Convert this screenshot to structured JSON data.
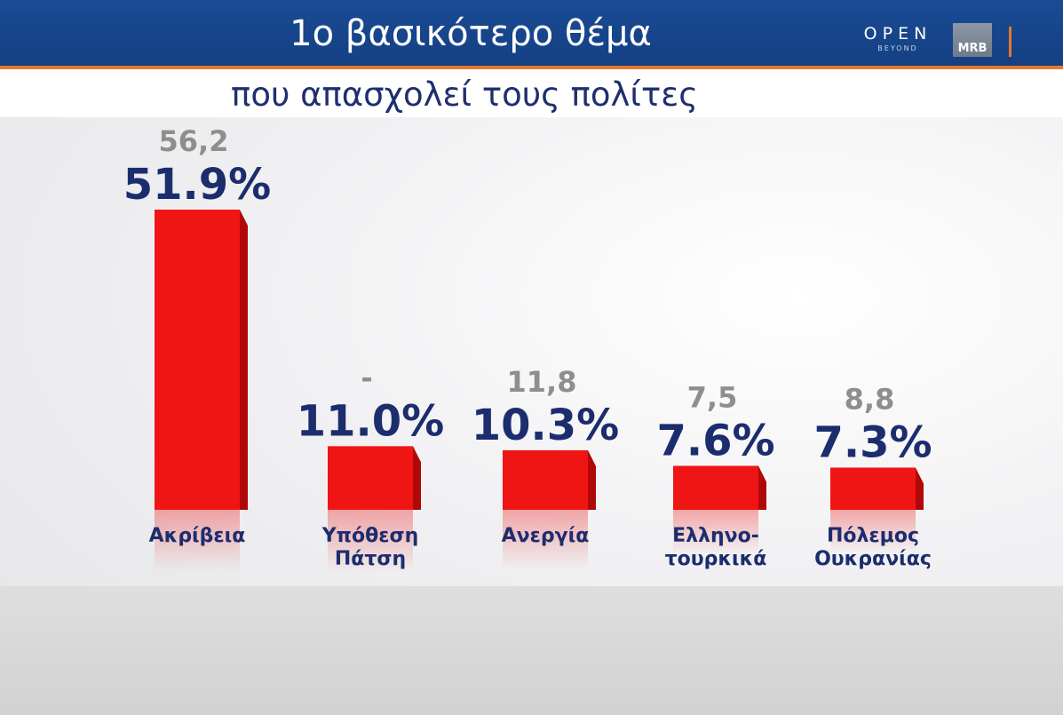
{
  "header": {
    "title": "1ο βασικότερο θέμα",
    "subtitle": "που απασχολεί τους πολίτες",
    "logo_open": "OPEN",
    "logo_beyond": "BEYOND",
    "logo_mrb": "MRB"
  },
  "colors": {
    "bar": "#f01515",
    "bar_side": "#b00808",
    "value_text": "#1c2d6e",
    "prev_text": "#8e8e8e",
    "header_bg": "#1a4b94",
    "accent": "#e8772e"
  },
  "chart_data": {
    "type": "bar",
    "title": "1ο βασικότερο θέμα",
    "subtitle": "που απασχολεί τους πολίτες",
    "categories": [
      "Ακρίβεια",
      "Υπόθεση Πάτση",
      "Ανεργία",
      "Ελληνο-τουρκικά",
      "Πόλεμος Ουκρανίας"
    ],
    "category_lines": [
      [
        "Ακρίβεια"
      ],
      [
        "Υπόθεση",
        "Πάτση"
      ],
      [
        "Ανεργία"
      ],
      [
        "Ελληνο-",
        "τουρκικά"
      ],
      [
        "Πόλεμος",
        "Ουκρανίας"
      ]
    ],
    "values": [
      51.9,
      11.0,
      10.3,
      7.6,
      7.3
    ],
    "value_labels": [
      "51.9%",
      "11.0%",
      "10.3%",
      "7.6%",
      "7.3%"
    ],
    "previous_labels": [
      "56,2",
      "-",
      "11,8",
      "7,5",
      "8,8"
    ],
    "previous_values": [
      56.2,
      null,
      11.8,
      7.5,
      8.8
    ],
    "unit": "%",
    "ylim": [
      0,
      51.9
    ]
  }
}
